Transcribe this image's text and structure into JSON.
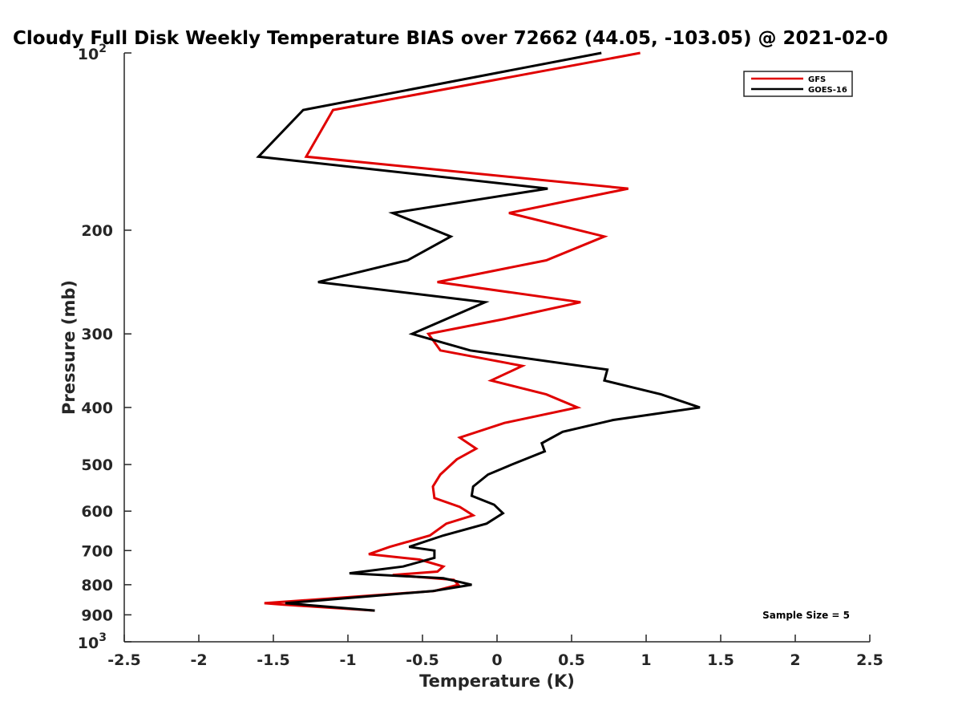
{
  "chart_data": {
    "type": "line",
    "title": "Cloudy Full Disk Weekly Temperature BIAS over 72662 (44.05, -103.05) @ 2021-02-0",
    "xlabel": "Temperature (K)",
    "ylabel": "Pressure (mb)",
    "xlim": [
      -2.5,
      2.5
    ],
    "ylim": [
      100,
      1000
    ],
    "y_scale": "log",
    "y_reversed": true,
    "x_ticks": [
      "-2.5",
      "-2",
      "-1.5",
      "-1",
      "-0.5",
      "0",
      "0.5",
      "1",
      "1.5",
      "2",
      "2.5"
    ],
    "x_tick_values": [
      -2.5,
      -2,
      -1.5,
      -1,
      -0.5,
      0,
      0.5,
      1,
      1.5,
      2,
      2.5
    ],
    "y_ticks": [
      {
        "value": 100,
        "base": "10",
        "exp": "2"
      },
      {
        "value": 200,
        "label": "200"
      },
      {
        "value": 300,
        "label": "300"
      },
      {
        "value": 400,
        "label": "400"
      },
      {
        "value": 500,
        "label": "500"
      },
      {
        "value": 600,
        "label": "600"
      },
      {
        "value": 700,
        "label": "700"
      },
      {
        "value": 800,
        "label": "800"
      },
      {
        "value": 900,
        "label": "900"
      },
      {
        "value": 1000,
        "base": "10",
        "exp": "3"
      }
    ],
    "grid": false,
    "legend_position": "top-right",
    "annotation": "Sample Size = 5",
    "series": [
      {
        "name": "GFS",
        "color": "#e00000",
        "points": [
          [
            0.96,
            100
          ],
          [
            -1.1,
            125
          ],
          [
            -1.28,
            150
          ],
          [
            0.88,
            170
          ],
          [
            0.08,
            187
          ],
          [
            0.72,
            205
          ],
          [
            0.33,
            225
          ],
          [
            -0.4,
            245
          ],
          [
            0.56,
            265
          ],
          [
            0.05,
            283
          ],
          [
            -0.46,
            300
          ],
          [
            -0.38,
            320
          ],
          [
            0.17,
            340
          ],
          [
            -0.04,
            360
          ],
          [
            0.33,
            380
          ],
          [
            0.54,
            400
          ],
          [
            0.05,
            425
          ],
          [
            -0.25,
            450
          ],
          [
            -0.14,
            470
          ],
          [
            -0.27,
            490
          ],
          [
            -0.38,
            520
          ],
          [
            -0.43,
            545
          ],
          [
            -0.42,
            570
          ],
          [
            -0.25,
            590
          ],
          [
            -0.16,
            610
          ],
          [
            -0.34,
            630
          ],
          [
            -0.45,
            660
          ],
          [
            -0.72,
            690
          ],
          [
            -0.86,
            710
          ],
          [
            -0.52,
            725
          ],
          [
            -0.36,
            745
          ],
          [
            -0.4,
            760
          ],
          [
            -0.7,
            770
          ],
          [
            -0.29,
            785
          ],
          [
            -0.26,
            800
          ],
          [
            -0.42,
            820
          ],
          [
            -1.56,
            860
          ],
          [
            -1.43,
            865
          ],
          [
            -0.82,
            885
          ]
        ]
      },
      {
        "name": "GOES-16",
        "color": "#000000",
        "points": [
          [
            0.7,
            100
          ],
          [
            -1.3,
            125
          ],
          [
            -1.6,
            150
          ],
          [
            0.34,
            170
          ],
          [
            -0.7,
            187
          ],
          [
            -0.31,
            205
          ],
          [
            -0.6,
            225
          ],
          [
            -1.2,
            245
          ],
          [
            -0.08,
            265
          ],
          [
            -0.57,
            300
          ],
          [
            -0.18,
            320
          ],
          [
            0.74,
            345
          ],
          [
            0.72,
            360
          ],
          [
            1.1,
            380
          ],
          [
            1.36,
            400
          ],
          [
            0.78,
            420
          ],
          [
            0.44,
            440
          ],
          [
            0.3,
            460
          ],
          [
            0.32,
            475
          ],
          [
            0.1,
            500
          ],
          [
            -0.06,
            520
          ],
          [
            -0.16,
            545
          ],
          [
            -0.17,
            565
          ],
          [
            -0.02,
            585
          ],
          [
            0.04,
            605
          ],
          [
            -0.07,
            630
          ],
          [
            -0.36,
            660
          ],
          [
            -0.59,
            690
          ],
          [
            -0.42,
            700
          ],
          [
            -0.42,
            720
          ],
          [
            -0.63,
            745
          ],
          [
            -0.99,
            765
          ],
          [
            -0.36,
            780
          ],
          [
            -0.17,
            800
          ],
          [
            -0.43,
            820
          ],
          [
            -1.42,
            860
          ],
          [
            -0.82,
            885
          ]
        ]
      }
    ]
  }
}
